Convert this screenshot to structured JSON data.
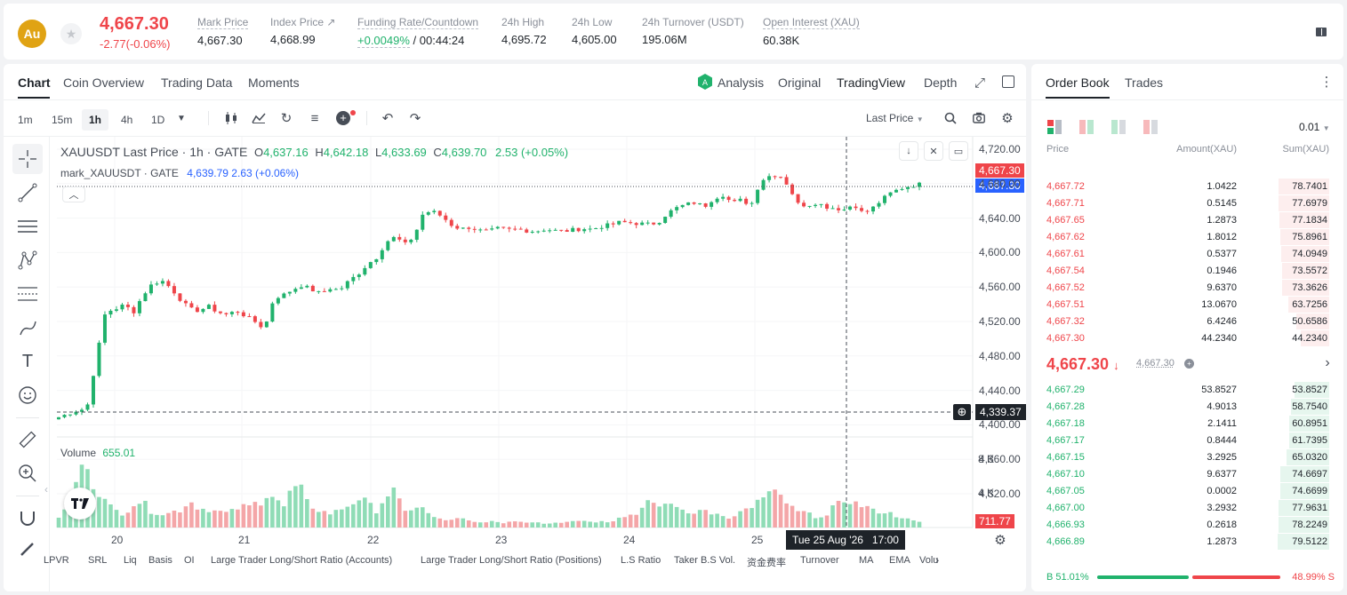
{
  "ticker": {
    "logo_text": "Au",
    "last_price": "4,667.30",
    "change": "-2.77(-0.06%)",
    "stats": [
      {
        "label": "Mark Price",
        "value": "4,667.30"
      },
      {
        "label": "Index Price ↗",
        "value": "4,668.99"
      },
      {
        "label": "Funding Rate/Countdown",
        "value": "+0.0049%",
        "value2": "/ 00:44:24"
      },
      {
        "label": "24h High",
        "value": "4,695.72"
      },
      {
        "label": "24h Low",
        "value": "4,605.00"
      },
      {
        "label": "24h Turnover (USDT)",
        "value": "195.06M"
      },
      {
        "label": "Open Interest (XAU)",
        "value": "60.38K"
      }
    ]
  },
  "chart_tabs": [
    "Chart",
    "Coin Overview",
    "Trading Data",
    "Moments"
  ],
  "view_tabs": [
    "Analysis",
    "Original",
    "TradingView",
    "Depth"
  ],
  "timeframes": [
    "1m",
    "15m",
    "1h",
    "4h",
    "1D"
  ],
  "price_type_label": "Last Price",
  "legend": {
    "main_title": "XAUUSDT Last Price · 1h · GATE",
    "o_label": "O",
    "o": "4,637.16",
    "h_label": "H",
    "h": "4,642.18",
    "l_label": "L",
    "l": "4,633.69",
    "c_label": "C",
    "c": "4,639.70",
    "chg": "2.53 (+0.05%)",
    "mark_title": "mark_XAUUSDT · GATE",
    "mark_value": "4,639.79  2.63 (+0.06%)",
    "volume_label": "Volume",
    "volume_value": "655.01"
  },
  "price_axis": [
    "4,720.00",
    "4,680.00",
    "4,640.00",
    "4,600.00",
    "4,560.00",
    "4,520.00",
    "4,480.00",
    "4,440.00",
    "4,400.00",
    "4,360.00",
    "4,320.00"
  ],
  "price_tags": {
    "last": "4,667.30",
    "mark": "4,667.30",
    "crosshair": "4,339.37",
    "volume": "711.77"
  },
  "volume_axis": [
    "8 K",
    "4 K"
  ],
  "time_axis": [
    "20",
    "21",
    "22",
    "23",
    "24",
    "25"
  ],
  "crosshair_time": "Tue 25 Aug '26   17:00",
  "indicators": [
    "LPVR",
    "SRL",
    "Liq",
    "Basis",
    "OI",
    "Large Trader Long/Short Ratio (Accounts)",
    "Large Trader Long/Short Ratio (Positions)",
    "L.S Ratio",
    "Taker B.S Vol.",
    "资金费率",
    "Turnover",
    "MA",
    "EMA",
    "Volu"
  ],
  "colors": {
    "up": "#20b26c",
    "down": "#ef454a",
    "mark": "#2962ff"
  },
  "chart_data": {
    "type": "candlestick",
    "x_ticks": [
      "20",
      "21",
      "22",
      "23",
      "24",
      "25"
    ],
    "ylim": [
      4320,
      4720
    ],
    "approx_close_path": [
      4338,
      4343,
      4348,
      4350,
      4420,
      4488,
      4492,
      4498,
      4488,
      4512,
      4528,
      4533,
      4522,
      4506,
      4492,
      4490,
      4496,
      4488,
      4484,
      4490,
      4482,
      4474,
      4464,
      4508,
      4512,
      4520,
      4526,
      4520,
      4514,
      4522,
      4519,
      4532,
      4542,
      4556,
      4566,
      4588,
      4595,
      4584,
      4596,
      4630,
      4631,
      4624,
      4612,
      4606,
      4609,
      4604,
      4603,
      4607,
      4605,
      4606,
      4604,
      4603,
      4606,
      4604,
      4603,
      4605,
      4607,
      4606,
      4610,
      4612,
      4616,
      4615,
      4614,
      4613,
      4615,
      4628,
      4636,
      4641,
      4644,
      4638,
      4650,
      4655,
      4643,
      4648,
      4640,
      4675,
      4682,
      4684,
      4668,
      4642,
      4640,
      4644,
      4638,
      4636,
      4634,
      4642,
      4628,
      4636,
      4648,
      4658,
      4664,
      4668,
      4670
    ],
    "volume_ylim": [
      0,
      10000
    ],
    "approx_volume": [
      1200,
      2500,
      6500,
      7500,
      4500,
      3000,
      2200,
      1800,
      2600,
      3500,
      2000,
      1500,
      1800,
      2400,
      3200,
      2600,
      1900,
      2100,
      1700,
      2200,
      2500,
      2800,
      3700,
      4200,
      2300,
      5200,
      4100,
      2400,
      2200,
      1600,
      2100,
      2800,
      3400,
      3000,
      2400,
      3800,
      4300,
      2000,
      2600,
      2200,
      1300,
      1000,
      800,
      1200,
      700,
      600,
      900,
      500,
      700,
      800,
      600,
      700,
      500,
      600,
      700,
      800,
      900,
      600,
      800,
      700,
      1200,
      1500,
      2100,
      2800,
      2500,
      3000,
      2600,
      1600,
      2000,
      2300,
      1800,
      1400,
      1100,
      1900,
      2300,
      3500,
      3900,
      4200,
      2800,
      2000,
      1800,
      1500,
      1300,
      2500,
      3600,
      3200,
      2700,
      2300,
      1900,
      1600,
      1200,
      900,
      700
    ]
  },
  "orderbook": {
    "tabs": [
      "Order Book",
      "Trades"
    ],
    "precision": "0.01",
    "headers": [
      "Price",
      "Amount(XAU)",
      "Sum(XAU)"
    ],
    "asks": [
      {
        "price": "4,667.72",
        "amount": "1.0422",
        "sum": "78.7401",
        "depth": 0.99
      },
      {
        "price": "4,667.71",
        "amount": "0.5145",
        "sum": "77.6979",
        "depth": 0.98
      },
      {
        "price": "4,667.65",
        "amount": "1.2873",
        "sum": "77.1834",
        "depth": 0.97
      },
      {
        "price": "4,667.62",
        "amount": "1.8012",
        "sum": "75.8961",
        "depth": 0.95
      },
      {
        "price": "4,667.61",
        "amount": "0.5377",
        "sum": "74.0949",
        "depth": 0.93
      },
      {
        "price": "4,667.54",
        "amount": "0.1946",
        "sum": "73.5572",
        "depth": 0.92
      },
      {
        "price": "4,667.52",
        "amount": "9.6370",
        "sum": "73.3626",
        "depth": 0.92
      },
      {
        "price": "4,667.51",
        "amount": "13.0670",
        "sum": "63.7256",
        "depth": 0.8
      },
      {
        "price": "4,667.32",
        "amount": "6.4246",
        "sum": "50.6586",
        "depth": 0.64
      },
      {
        "price": "4,667.30",
        "amount": "44.2340",
        "sum": "44.2340",
        "depth": 0.56
      }
    ],
    "mid_price": "4,667.30",
    "mid_arrow": "↓",
    "mid_mark": "4,667.30",
    "bids": [
      {
        "price": "4,667.29",
        "amount": "53.8527",
        "sum": "53.8527",
        "depth": 0.68
      },
      {
        "price": "4,667.28",
        "amount": "4.9013",
        "sum": "58.7540",
        "depth": 0.74
      },
      {
        "price": "4,667.18",
        "amount": "2.1411",
        "sum": "60.8951",
        "depth": 0.77
      },
      {
        "price": "4,667.17",
        "amount": "0.8444",
        "sum": "61.7395",
        "depth": 0.78
      },
      {
        "price": "4,667.15",
        "amount": "3.2925",
        "sum": "65.0320",
        "depth": 0.82
      },
      {
        "price": "4,667.10",
        "amount": "9.6377",
        "sum": "74.6697",
        "depth": 0.94
      },
      {
        "price": "4,667.05",
        "amount": "0.0002",
        "sum": "74.6699",
        "depth": 0.94
      },
      {
        "price": "4,667.00",
        "amount": "3.2932",
        "sum": "77.9631",
        "depth": 0.98
      },
      {
        "price": "4,666.93",
        "amount": "0.2618",
        "sum": "78.2249",
        "depth": 0.99
      },
      {
        "price": "4,666.89",
        "amount": "1.2873",
        "sum": "79.5122",
        "depth": 1.0
      }
    ],
    "buy_label": "B 51.01%",
    "sell_label": "48.99% S",
    "buy_ratio": 0.5101
  }
}
